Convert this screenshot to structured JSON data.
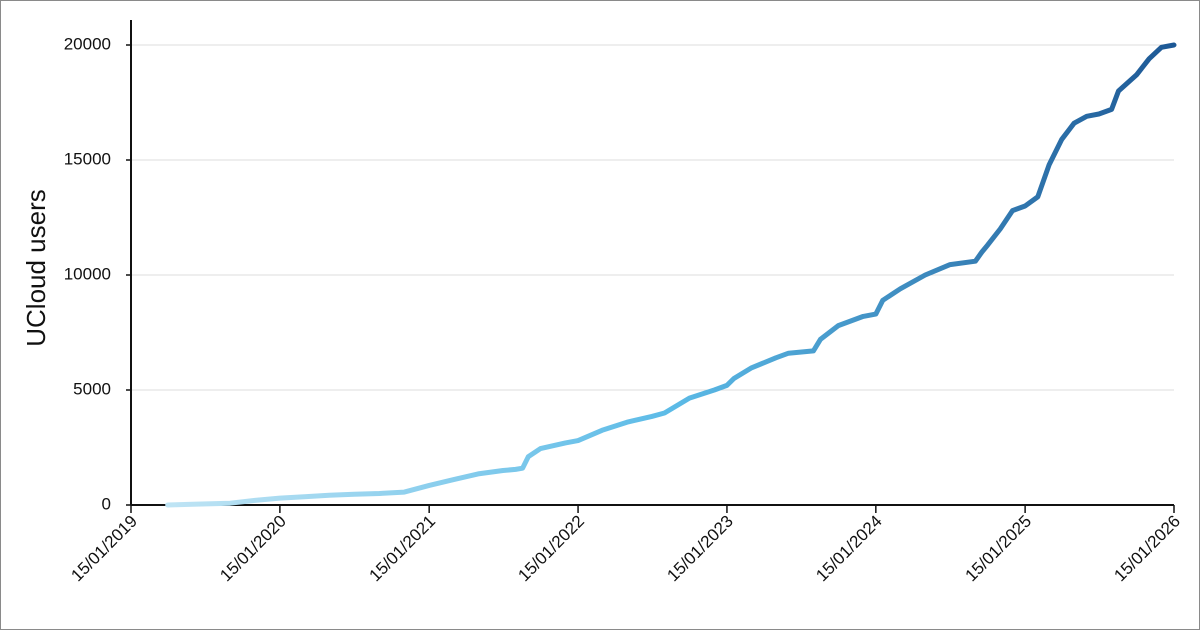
{
  "chart_data": {
    "type": "line",
    "ylabel": "UCloud users",
    "x": [
      "15/04/2019",
      "15/06/2019",
      "15/09/2019",
      "15/11/2019",
      "15/01/2020",
      "15/03/2020",
      "15/05/2020",
      "15/07/2020",
      "15/09/2020",
      "15/11/2020",
      "15/01/2021",
      "15/03/2021",
      "15/05/2021",
      "15/07/2021",
      "15/08/2021",
      "01/09/2021",
      "15/09/2021",
      "15/10/2021",
      "15/12/2021",
      "15/01/2022",
      "15/03/2022",
      "15/05/2022",
      "15/07/2022",
      "15/08/2022",
      "15/10/2022",
      "15/12/2022",
      "15/01/2023",
      "01/02/2023",
      "15/03/2023",
      "15/05/2023",
      "15/06/2023",
      "15/08/2023",
      "01/09/2023",
      "15/10/2023",
      "15/12/2023",
      "15/01/2024",
      "01/02/2024",
      "15/03/2024",
      "15/05/2024",
      "15/07/2024",
      "15/09/2024",
      "01/10/2024",
      "15/10/2024",
      "15/11/2024",
      "15/12/2024",
      "15/01/2025",
      "15/02/2025",
      "15/03/2025",
      "15/04/2025",
      "15/05/2025",
      "15/06/2025",
      "15/07/2025",
      "15/08/2025",
      "01/09/2025",
      "15/10/2025",
      "15/11/2025",
      "15/12/2025",
      "15/01/2026"
    ],
    "series": [
      {
        "colors": [
          "#bfe4f4",
          "#5cbbe7",
          "#1d5895"
        ],
        "values": [
          0,
          30,
          80,
          200,
          300,
          360,
          420,
          470,
          500,
          560,
          850,
          1100,
          1350,
          1500,
          1550,
          1600,
          2100,
          2450,
          2700,
          2800,
          3250,
          3600,
          3850,
          4000,
          4650,
          5000,
          5200,
          5500,
          5950,
          6400,
          6600,
          6700,
          7200,
          7800,
          8200,
          8300,
          8900,
          9400,
          10000,
          10450,
          10600,
          11000,
          11300,
          12000,
          12800,
          13000,
          13400,
          14800,
          15900,
          16600,
          16900,
          17000,
          17200,
          18000,
          18700,
          19400,
          19900,
          20000
        ]
      }
    ],
    "xlim": [
      "15/01/2019",
      "15/01/2026"
    ],
    "xticks": [
      "15/01/2019",
      "15/01/2020",
      "15/01/2021",
      "15/01/2022",
      "15/01/2023",
      "15/01/2024",
      "15/01/2025",
      "15/01/2026"
    ],
    "ylim": [
      0,
      20000
    ],
    "yticks": [
      0,
      5000,
      10000,
      15000,
      20000
    ],
    "grid": true
  }
}
